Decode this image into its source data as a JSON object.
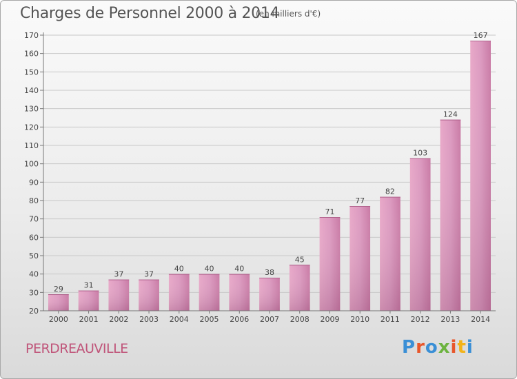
{
  "chart_data": {
    "type": "bar",
    "title": "Charges de Personnel 2000 à 2014",
    "subtitle": "(en milliers d'€)",
    "categories": [
      "2000",
      "2001",
      "2002",
      "2003",
      "2004",
      "2005",
      "2006",
      "2007",
      "2008",
      "2009",
      "2010",
      "2011",
      "2012",
      "2013",
      "2014"
    ],
    "values": [
      29,
      31,
      37,
      37,
      40,
      40,
      40,
      38,
      45,
      71,
      77,
      82,
      103,
      124,
      167
    ],
    "ylim": [
      20,
      170
    ],
    "yticks": [
      20,
      30,
      40,
      50,
      60,
      70,
      80,
      90,
      100,
      110,
      120,
      130,
      140,
      150,
      160,
      170
    ],
    "grid": true,
    "bar_color": "#d98fb5"
  },
  "footer": {
    "place": "PERDREAUVILLE",
    "logo": "Proxiti",
    "logo_colors": [
      "#3a8fd6",
      "#e8562a",
      "#3a8fd6",
      "#6cb33f",
      "#e8562a",
      "#f2b31a",
      "#3a8fd6"
    ]
  }
}
